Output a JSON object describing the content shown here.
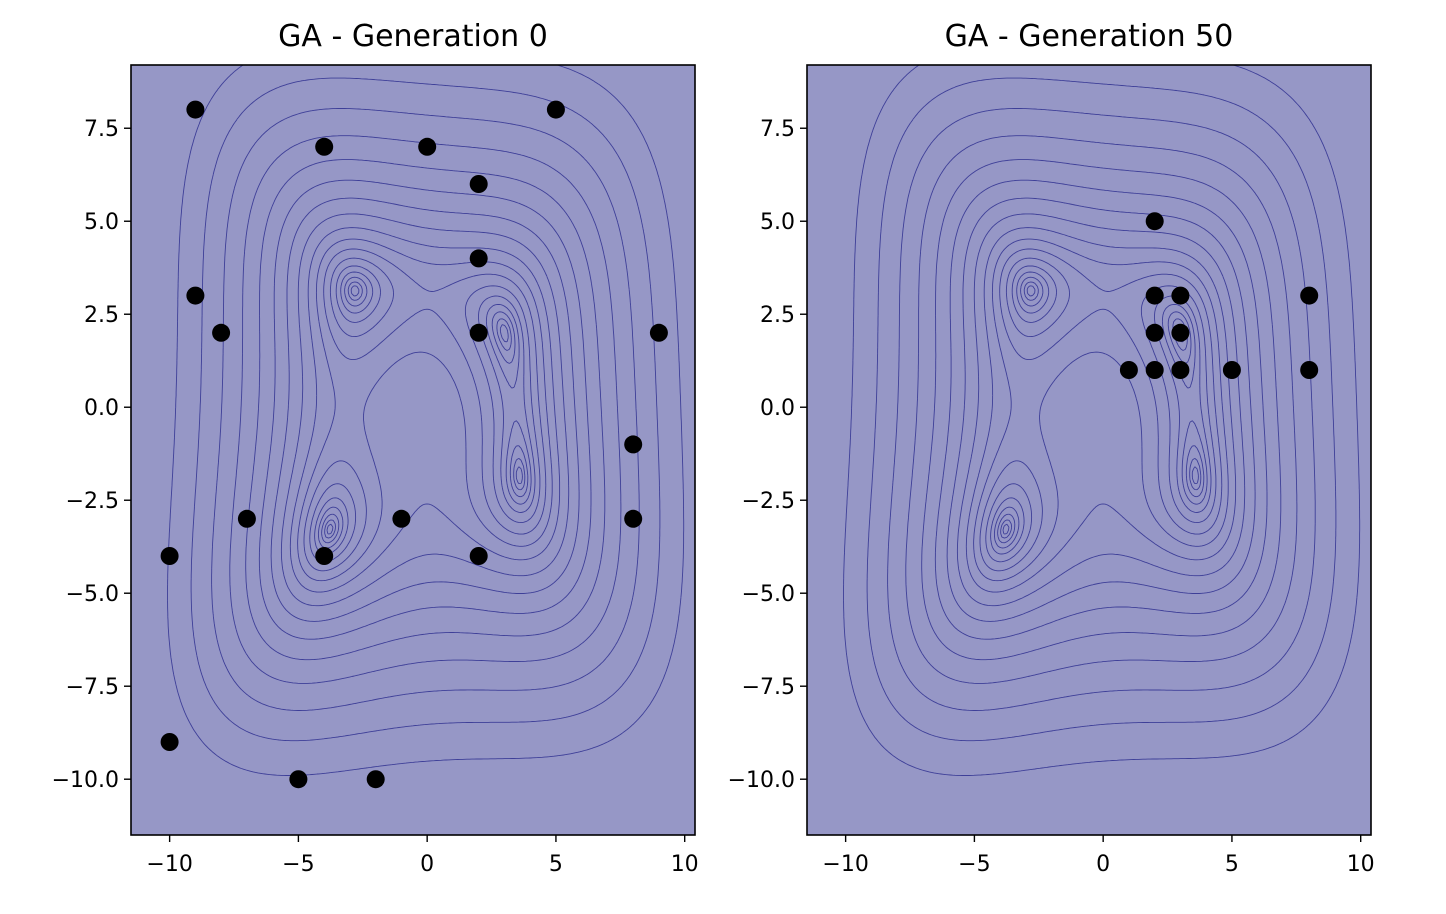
{
  "chart_data": [
    {
      "type": "scatter",
      "title": "GA - Generation 0",
      "xlim": [
        -11.5,
        10.4
      ],
      "ylim": [
        -11.5,
        9.2
      ],
      "xticks": [
        -10,
        -5,
        0,
        5,
        10
      ],
      "xtick_labels": [
        "−10",
        "−5",
        "0",
        "5",
        "10"
      ],
      "yticks": [
        -10,
        -7.5,
        -5,
        -2.5,
        0,
        2.5,
        5,
        7.5
      ],
      "ytick_labels": [
        "−10.0",
        "−7.5",
        "−5.0",
        "−2.5",
        "0.0",
        "2.5",
        "5.0",
        "7.5"
      ],
      "background": "contour plot of Himmelblau-like function with four minima",
      "grid": false,
      "points": [
        {
          "x": -9,
          "y": 8
        },
        {
          "x": 5,
          "y": 8
        },
        {
          "x": -4,
          "y": 7
        },
        {
          "x": 0,
          "y": 7
        },
        {
          "x": 2,
          "y": 6
        },
        {
          "x": 2,
          "y": 4
        },
        {
          "x": -9,
          "y": 3
        },
        {
          "x": -8,
          "y": 2
        },
        {
          "x": 2,
          "y": 2
        },
        {
          "x": 9,
          "y": 2
        },
        {
          "x": 8,
          "y": -1
        },
        {
          "x": -7,
          "y": -3
        },
        {
          "x": -1,
          "y": -3
        },
        {
          "x": 8,
          "y": -3
        },
        {
          "x": -10,
          "y": -4
        },
        {
          "x": -4,
          "y": -4
        },
        {
          "x": 2,
          "y": -4
        },
        {
          "x": -10,
          "y": -9
        },
        {
          "x": -5,
          "y": -10
        },
        {
          "x": -2,
          "y": -10
        }
      ]
    },
    {
      "type": "scatter",
      "title": "GA - Generation 50",
      "xlim": [
        -11.5,
        10.4
      ],
      "ylim": [
        -11.5,
        9.2
      ],
      "xticks": [
        -10,
        -5,
        0,
        5,
        10
      ],
      "xtick_labels": [
        "−10",
        "−5",
        "0",
        "5",
        "10"
      ],
      "yticks": [
        -10,
        -7.5,
        -5,
        -2.5,
        0,
        2.5,
        5,
        7.5
      ],
      "ytick_labels": [
        "−10.0",
        "−7.5",
        "−5.0",
        "−2.5",
        "0.0",
        "2.5",
        "5.0",
        "7.5"
      ],
      "background": "contour plot of Himmelblau-like function with four minima",
      "grid": false,
      "points": [
        {
          "x": 2,
          "y": 5
        },
        {
          "x": 2,
          "y": 3
        },
        {
          "x": 3,
          "y": 3
        },
        {
          "x": 8,
          "y": 3
        },
        {
          "x": 2,
          "y": 2
        },
        {
          "x": 3,
          "y": 2
        },
        {
          "x": 1,
          "y": 1
        },
        {
          "x": 2,
          "y": 1
        },
        {
          "x": 3,
          "y": 1
        },
        {
          "x": 5,
          "y": 1
        },
        {
          "x": 8,
          "y": 1
        }
      ]
    }
  ],
  "colors": {
    "plot_background": "#9697c6",
    "contour_line": "#3e3f98",
    "marker": "#000000",
    "axis": "#000000"
  }
}
